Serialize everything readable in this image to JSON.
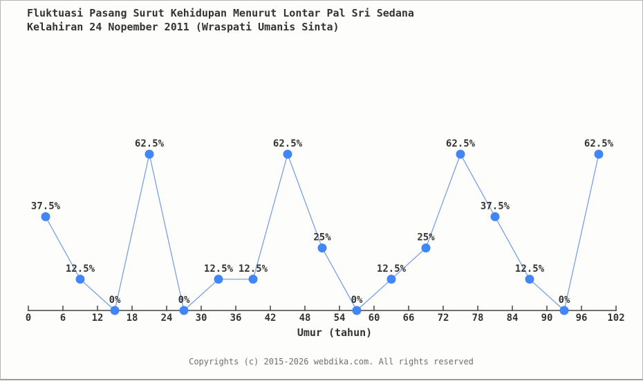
{
  "page": {
    "footer_copyright": "Copyrights (c) 2015-2026 webdika.com. All rights reserved"
  },
  "chart_data": {
    "type": "line",
    "title": "Fluktuasi Pasang Surut Kehidupan Menurut Lontar Pal Sri Sedana",
    "subtitle": "Kelahiran 24 Nopember 2011 (Wraspati Umanis Sinta)",
    "xlabel": "Umur (tahun)",
    "ylabel": "",
    "x": [
      3,
      9,
      15,
      21,
      27,
      33,
      39,
      45,
      51,
      57,
      63,
      69,
      75,
      81,
      87,
      93,
      99
    ],
    "values": [
      37.5,
      12.5,
      0,
      62.5,
      0,
      12.5,
      12.5,
      62.5,
      25,
      0,
      12.5,
      25,
      62.5,
      37.5,
      12.5,
      0,
      62.5
    ],
    "point_labels": [
      "37.5%",
      "12.5%",
      "0%",
      "62.5%",
      "0%",
      "12.5%",
      "12.5%",
      "62.5%",
      "25%",
      "0%",
      "12.5%",
      "25%",
      "62.5%",
      "37.5%",
      "12.5%",
      "0%",
      "62.5%"
    ],
    "x_ticks": [
      0,
      6,
      12,
      18,
      24,
      30,
      36,
      42,
      48,
      54,
      60,
      66,
      72,
      78,
      84,
      90,
      96,
      102
    ],
    "xlim": [
      0,
      102
    ],
    "ylim": [
      0,
      100
    ],
    "grid": false,
    "legend_position": "none",
    "colors": {
      "line": "#6f9ae0",
      "marker": "#4285f4",
      "axis": "#424242",
      "text": "#333333",
      "footer_text": "#6e6e6e",
      "background": "#fdfdfb"
    }
  }
}
